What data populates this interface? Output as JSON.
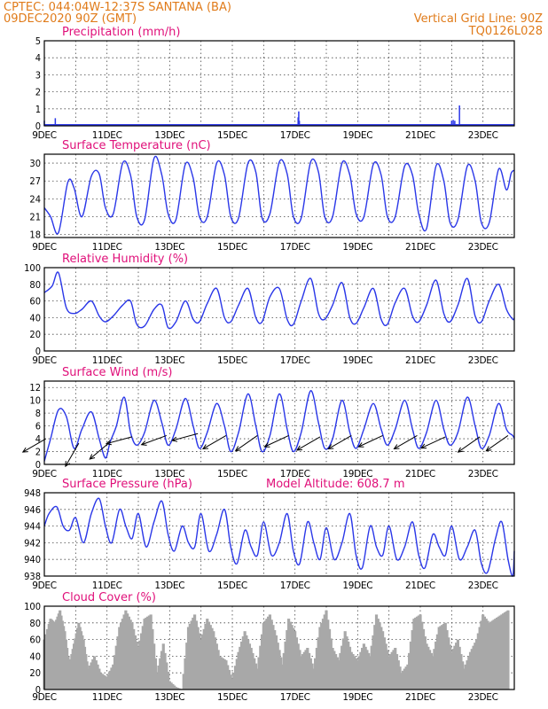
{
  "header": {
    "line1_left": "CPTEC:   044:04W-12:37S   SANTANA (BA)",
    "line2_left": "09DEC2020 90Z (GMT)",
    "line1_right": "Vertical Grid Line: 90Z",
    "line2_right": "TQ0126L028"
  },
  "chart_data": [
    {
      "type": "bar",
      "title": "Precipitation (mm/h)",
      "ylim": [
        0,
        5
      ],
      "yticks": [
        0,
        1,
        2,
        3,
        4,
        5
      ],
      "xticks": [
        "9DEC",
        "11DEC",
        "13DEC",
        "15DEC",
        "17DEC",
        "19DEC",
        "21DEC",
        "23DEC"
      ],
      "x_range_days": [
        9,
        24
      ],
      "x": [
        9.0,
        9.3,
        9.35,
        17.1,
        17.12,
        17.14,
        22.0,
        22.05,
        22.1,
        22.25
      ],
      "values": [
        0.3,
        0.1,
        0.45,
        0.5,
        0.85,
        0.3,
        0.3,
        0.35,
        0.3,
        1.2
      ],
      "baseline": 0.05,
      "color": "#2a37e8"
    },
    {
      "type": "line",
      "title": "Surface Temperature (nC)",
      "ylim": [
        17.5,
        31.5
      ],
      "yticks": [
        18,
        21,
        24,
        27,
        30
      ],
      "xticks": [
        "9DEC",
        "11DEC",
        "13DEC",
        "15DEC",
        "17DEC",
        "19DEC",
        "21DEC",
        "23DEC"
      ],
      "x_range_days": [
        9,
        24
      ],
      "x": [
        9.0,
        9.2,
        9.45,
        9.75,
        9.95,
        10.2,
        10.5,
        10.75,
        10.95,
        11.2,
        11.5,
        11.75,
        11.95,
        12.2,
        12.5,
        12.75,
        12.95,
        13.2,
        13.5,
        13.75,
        13.95,
        14.2,
        14.5,
        14.75,
        14.95,
        15.2,
        15.5,
        15.75,
        15.95,
        16.2,
        16.5,
        16.75,
        16.95,
        17.2,
        17.5,
        17.75,
        17.95,
        18.2,
        18.5,
        18.75,
        18.95,
        19.2,
        19.5,
        19.75,
        19.95,
        20.2,
        20.5,
        20.75,
        20.95,
        21.2,
        21.5,
        21.75,
        21.95,
        22.2,
        22.5,
        22.75,
        22.95,
        23.2,
        23.5,
        23.75,
        23.9,
        24.0
      ],
      "values": [
        22.5,
        21.0,
        18.3,
        26.8,
        25.8,
        21.0,
        27.8,
        28.2,
        22.5,
        21.5,
        30.0,
        28.0,
        21.0,
        20.5,
        30.8,
        28.0,
        21.5,
        20.5,
        29.8,
        27.5,
        21.0,
        21.0,
        30.0,
        28.0,
        21.0,
        20.8,
        30.0,
        28.5,
        20.8,
        21.5,
        30.2,
        28.2,
        21.0,
        20.8,
        30.2,
        28.5,
        21.0,
        21.0,
        30.0,
        28.0,
        21.5,
        21.0,
        29.8,
        28.0,
        21.0,
        21.0,
        29.5,
        28.0,
        21.5,
        19.0,
        29.5,
        27.0,
        20.0,
        20.5,
        29.5,
        27.0,
        20.0,
        20.0,
        29.0,
        25.5,
        28.3,
        28.8
      ],
      "color": "#2a37e8"
    },
    {
      "type": "line",
      "title": "Relative Humidity (%)",
      "ylim": [
        0,
        100
      ],
      "yticks": [
        0,
        20,
        40,
        60,
        80,
        100
      ],
      "xticks": [
        "9DEC",
        "11DEC",
        "13DEC",
        "15DEC",
        "17DEC",
        "19DEC",
        "21DEC",
        "23DEC"
      ],
      "x_range_days": [
        9,
        24
      ],
      "x": [
        9.0,
        9.25,
        9.45,
        9.7,
        9.95,
        10.2,
        10.5,
        10.75,
        10.95,
        11.2,
        11.5,
        11.75,
        11.95,
        12.2,
        12.5,
        12.75,
        12.95,
        13.2,
        13.5,
        13.75,
        13.95,
        14.2,
        14.5,
        14.75,
        14.95,
        15.2,
        15.5,
        15.75,
        15.95,
        16.2,
        16.5,
        16.75,
        16.95,
        17.2,
        17.5,
        17.75,
        17.95,
        18.2,
        18.5,
        18.75,
        18.95,
        19.2,
        19.5,
        19.75,
        19.95,
        20.2,
        20.5,
        20.75,
        20.95,
        21.2,
        21.5,
        21.75,
        21.95,
        22.2,
        22.5,
        22.75,
        22.95,
        23.2,
        23.5,
        23.75,
        23.95,
        24.0
      ],
      "values": [
        70,
        78,
        94,
        52,
        45,
        50,
        60,
        42,
        35,
        42,
        55,
        60,
        32,
        30,
        50,
        55,
        28,
        35,
        60,
        38,
        35,
        57,
        75,
        40,
        35,
        55,
        75,
        40,
        35,
        65,
        75,
        38,
        32,
        60,
        87,
        45,
        38,
        55,
        82,
        40,
        33,
        52,
        75,
        38,
        32,
        58,
        75,
        42,
        35,
        55,
        85,
        45,
        35,
        55,
        87,
        42,
        35,
        60,
        80,
        50,
        38,
        40
      ],
      "color": "#2a37e8"
    },
    {
      "type": "line",
      "title": "Surface Wind (m/s)",
      "ylim": [
        0,
        13
      ],
      "yticks": [
        0,
        2,
        4,
        6,
        8,
        10,
        12
      ],
      "xticks": [
        "9DEC",
        "11DEC",
        "13DEC",
        "15DEC",
        "17DEC",
        "19DEC",
        "21DEC",
        "23DEC"
      ],
      "x_range_days": [
        9,
        24
      ],
      "x": [
        9.0,
        9.2,
        9.45,
        9.7,
        9.95,
        10.2,
        10.5,
        10.75,
        10.95,
        11.1,
        11.3,
        11.55,
        11.75,
        11.95,
        12.2,
        12.5,
        12.75,
        12.95,
        13.2,
        13.5,
        13.75,
        13.95,
        14.2,
        14.5,
        14.75,
        14.95,
        15.2,
        15.5,
        15.75,
        15.95,
        16.2,
        16.5,
        16.75,
        16.95,
        17.2,
        17.5,
        17.75,
        17.95,
        18.2,
        18.5,
        18.75,
        18.95,
        19.2,
        19.5,
        19.75,
        19.95,
        20.2,
        20.5,
        20.75,
        20.95,
        21.2,
        21.5,
        21.75,
        21.95,
        22.2,
        22.5,
        22.75,
        22.95,
        23.2,
        23.5,
        23.75,
        23.95,
        24.0
      ],
      "values": [
        0.5,
        4.0,
        8.5,
        7.5,
        2.5,
        5.5,
        8.2,
        4.0,
        1.0,
        3.5,
        6.0,
        10.5,
        5.0,
        3.0,
        5.0,
        10.0,
        6.5,
        3.0,
        5.5,
        10.3,
        6.0,
        2.5,
        5.0,
        9.5,
        6.0,
        2.0,
        5.0,
        11.0,
        6.0,
        2.0,
        4.5,
        11.0,
        5.5,
        2.0,
        5.0,
        11.5,
        6.5,
        2.5,
        4.0,
        10.0,
        5.0,
        2.5,
        5.5,
        9.5,
        5.5,
        3.0,
        5.5,
        10.0,
        5.5,
        2.5,
        5.0,
        10.0,
        5.5,
        3.0,
        5.0,
        10.5,
        6.0,
        2.5,
        4.5,
        9.5,
        5.5,
        4.5,
        4.0
      ],
      "arrows": [
        {
          "x": 9.05,
          "y": 4.0,
          "dir_deg": 210
        },
        {
          "x": 10.1,
          "y": 3.3,
          "dir_deg": 240
        },
        {
          "x": 11.1,
          "y": 3.5,
          "dir_deg": 220
        },
        {
          "x": 11.8,
          "y": 4.3,
          "dir_deg": 195
        },
        {
          "x": 12.9,
          "y": 4.5,
          "dir_deg": 200
        },
        {
          "x": 13.9,
          "y": 4.8,
          "dir_deg": 195
        },
        {
          "x": 14.8,
          "y": 4.5,
          "dir_deg": 210
        },
        {
          "x": 15.8,
          "y": 4.5,
          "dir_deg": 215
        },
        {
          "x": 16.8,
          "y": 4.5,
          "dir_deg": 205
        },
        {
          "x": 17.8,
          "y": 4.3,
          "dir_deg": 210
        },
        {
          "x": 18.8,
          "y": 4.5,
          "dir_deg": 210
        },
        {
          "x": 19.8,
          "y": 4.5,
          "dir_deg": 205
        },
        {
          "x": 20.9,
          "y": 4.5,
          "dir_deg": 210
        },
        {
          "x": 21.8,
          "y": 4.3,
          "dir_deg": 205
        },
        {
          "x": 22.9,
          "y": 4.3,
          "dir_deg": 215
        },
        {
          "x": 23.8,
          "y": 4.5,
          "dir_deg": 215
        }
      ],
      "color": "#2a37e8"
    },
    {
      "type": "line",
      "title": "Surface Pressure (hPa)",
      "annotation": "Model Altitude: 608.7  m",
      "ylim": [
        938,
        948
      ],
      "yticks": [
        938,
        940,
        942,
        944,
        946,
        948
      ],
      "xticks": [
        "9DEC",
        "11DEC",
        "13DEC",
        "15DEC",
        "17DEC",
        "19DEC",
        "21DEC",
        "23DEC"
      ],
      "x_range_days": [
        9,
        24
      ],
      "x": [
        9.0,
        9.15,
        9.4,
        9.6,
        9.8,
        10.0,
        10.25,
        10.5,
        10.75,
        10.95,
        11.15,
        11.4,
        11.6,
        11.8,
        12.0,
        12.25,
        12.5,
        12.75,
        12.95,
        13.15,
        13.4,
        13.6,
        13.8,
        14.0,
        14.25,
        14.5,
        14.75,
        14.95,
        15.15,
        15.4,
        15.6,
        15.8,
        16.0,
        16.25,
        16.5,
        16.75,
        16.95,
        17.15,
        17.4,
        17.6,
        17.8,
        18.0,
        18.25,
        18.5,
        18.75,
        18.95,
        19.15,
        19.4,
        19.6,
        19.8,
        20.0,
        20.25,
        20.5,
        20.75,
        20.95,
        21.15,
        21.4,
        21.6,
        21.8,
        22.0,
        22.25,
        22.5,
        22.75,
        22.95,
        23.15,
        23.4,
        23.6,
        23.8,
        23.95,
        24.0
      ],
      "values": [
        944.0,
        945.5,
        946.3,
        944.0,
        943.5,
        945.0,
        942.0,
        945.5,
        947.3,
        944.0,
        942.0,
        946.0,
        944.0,
        942.5,
        945.5,
        941.5,
        944.5,
        947.0,
        943.0,
        941.0,
        944.0,
        942.0,
        941.5,
        945.5,
        941.0,
        943.0,
        946.0,
        941.5,
        939.5,
        943.5,
        941.5,
        940.5,
        944.5,
        940.5,
        942.0,
        945.5,
        941.0,
        939.5,
        944.5,
        942.0,
        940.0,
        943.8,
        940.0,
        942.0,
        945.5,
        940.5,
        939.0,
        944.0,
        941.5,
        940.5,
        944.0,
        940.0,
        941.5,
        944.5,
        940.5,
        939.0,
        943.0,
        941.5,
        940.5,
        944.0,
        940.0,
        941.5,
        943.5,
        939.5,
        938.5,
        942.5,
        944.5,
        940.0,
        938.0,
        941.0
      ],
      "color": "#2a37e8"
    },
    {
      "type": "bar",
      "title": "Cloud Cover (%)",
      "ylim": [
        0,
        100
      ],
      "yticks": [
        0,
        20,
        40,
        60,
        80,
        100
      ],
      "xticks": [
        "9DEC",
        "11DEC",
        "13DEC",
        "15DEC",
        "17DEC",
        "19DEC",
        "21DEC",
        "23DEC"
      ],
      "x_range_days": [
        9,
        24
      ],
      "x": [
        9.0,
        9.2,
        9.35,
        9.5,
        9.65,
        9.8,
        9.95,
        10.1,
        10.25,
        10.4,
        10.6,
        10.8,
        11.0,
        11.2,
        11.4,
        11.6,
        11.8,
        12.0,
        12.2,
        12.4,
        12.6,
        12.8,
        13.0,
        13.2,
        13.4,
        13.6,
        13.8,
        14.0,
        14.2,
        14.4,
        14.6,
        14.8,
        15.0,
        15.2,
        15.4,
        15.6,
        15.8,
        16.0,
        16.2,
        16.4,
        16.6,
        16.8,
        17.0,
        17.2,
        17.4,
        17.6,
        17.8,
        18.0,
        18.2,
        18.4,
        18.6,
        18.8,
        19.0,
        19.2,
        19.4,
        19.6,
        19.8,
        20.0,
        20.2,
        20.4,
        20.6,
        20.8,
        21.0,
        21.2,
        21.4,
        21.6,
        21.8,
        22.0,
        22.2,
        22.4,
        22.6,
        22.8,
        23.0,
        23.2,
        23.4,
        23.6,
        23.8
      ],
      "values": [
        60,
        85,
        80,
        95,
        70,
        30,
        55,
        80,
        60,
        25,
        40,
        20,
        15,
        30,
        75,
        95,
        80,
        50,
        85,
        90,
        20,
        55,
        10,
        3,
        0,
        75,
        90,
        60,
        85,
        70,
        40,
        35,
        12,
        45,
        70,
        50,
        25,
        80,
        90,
        65,
        30,
        85,
        70,
        40,
        50,
        25,
        75,
        95,
        50,
        35,
        70,
        45,
        35,
        55,
        40,
        90,
        70,
        40,
        50,
        20,
        30,
        85,
        90,
        55,
        40,
        75,
        80,
        45,
        60,
        25,
        45,
        60,
        90,
        80,
        85,
        90,
        95
      ],
      "color": "#a8a8a8"
    }
  ]
}
